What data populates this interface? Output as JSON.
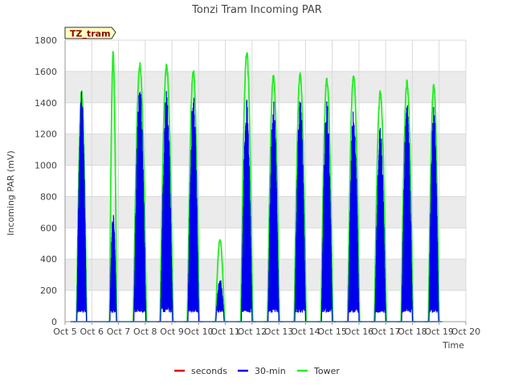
{
  "chart_data": {
    "type": "line",
    "title": "Tonzi Tram Incoming PAR",
    "xlabel": "Time",
    "ylabel": "Incoming PAR (mV)",
    "site_tag": "TZ_tram",
    "x_ticks": [
      "Oct 5",
      "Oct 6",
      "Oct 7",
      "Oct 8",
      "Oct 9",
      "Oct 10",
      "Oct 11",
      "Oct 12",
      "Oct 13",
      "Oct 14",
      "Oct 15",
      "Oct 16",
      "Oct 17",
      "Oct 18",
      "Oct 19",
      "Oct 20"
    ],
    "xlim": [
      5,
      20
    ],
    "ylim": [
      0,
      1800
    ],
    "y_ticks": [
      0,
      200,
      400,
      600,
      800,
      1000,
      1200,
      1400,
      1600,
      1800
    ],
    "grid": true,
    "band_fill": "#ebebeb",
    "legend_position": "bottom",
    "series": [
      {
        "name": "seconds",
        "color": "#e00000",
        "values": []
      },
      {
        "name": "30-min",
        "color": "#0000ee",
        "daily_peaks": [
          {
            "day": 5.62,
            "peak": 1490,
            "width": 0.16
          },
          {
            "day": 6.8,
            "peak": 700,
            "width": 0.11
          },
          {
            "day": 7.8,
            "peak": 1520,
            "width": 0.2
          },
          {
            "day": 8.8,
            "peak": 1490,
            "width": 0.2
          },
          {
            "day": 9.8,
            "peak": 1460,
            "width": 0.18
          },
          {
            "day": 10.8,
            "peak": 280,
            "width": 0.14
          },
          {
            "day": 11.8,
            "peak": 1420,
            "width": 0.18
          },
          {
            "day": 12.8,
            "peak": 1420,
            "width": 0.18
          },
          {
            "day": 13.8,
            "peak": 1440,
            "width": 0.18
          },
          {
            "day": 14.8,
            "peak": 1420,
            "width": 0.18
          },
          {
            "day": 15.8,
            "peak": 1380,
            "width": 0.18
          },
          {
            "day": 16.8,
            "peak": 1260,
            "width": 0.18
          },
          {
            "day": 17.8,
            "peak": 1400,
            "width": 0.18
          },
          {
            "day": 18.8,
            "peak": 1380,
            "width": 0.16
          }
        ]
      },
      {
        "name": "Tower",
        "color": "#22ee22",
        "daily_peaks": [
          {
            "day": 5.62,
            "peak": 1480,
            "width": 0.17
          },
          {
            "day": 6.8,
            "peak": 1730,
            "width": 0.12
          },
          {
            "day": 7.8,
            "peak": 1670,
            "width": 0.22
          },
          {
            "day": 8.8,
            "peak": 1650,
            "width": 0.22
          },
          {
            "day": 9.8,
            "peak": 1630,
            "width": 0.2
          },
          {
            "day": 10.8,
            "peak": 530,
            "width": 0.15
          },
          {
            "day": 11.8,
            "peak": 1750,
            "width": 0.2
          },
          {
            "day": 12.8,
            "peak": 1590,
            "width": 0.2
          },
          {
            "day": 13.8,
            "peak": 1600,
            "width": 0.2
          },
          {
            "day": 14.8,
            "peak": 1570,
            "width": 0.2
          },
          {
            "day": 15.8,
            "peak": 1610,
            "width": 0.2
          },
          {
            "day": 16.8,
            "peak": 1480,
            "width": 0.2
          },
          {
            "day": 17.8,
            "peak": 1550,
            "width": 0.2
          },
          {
            "day": 18.8,
            "peak": 1530,
            "width": 0.18
          }
        ]
      }
    ]
  }
}
